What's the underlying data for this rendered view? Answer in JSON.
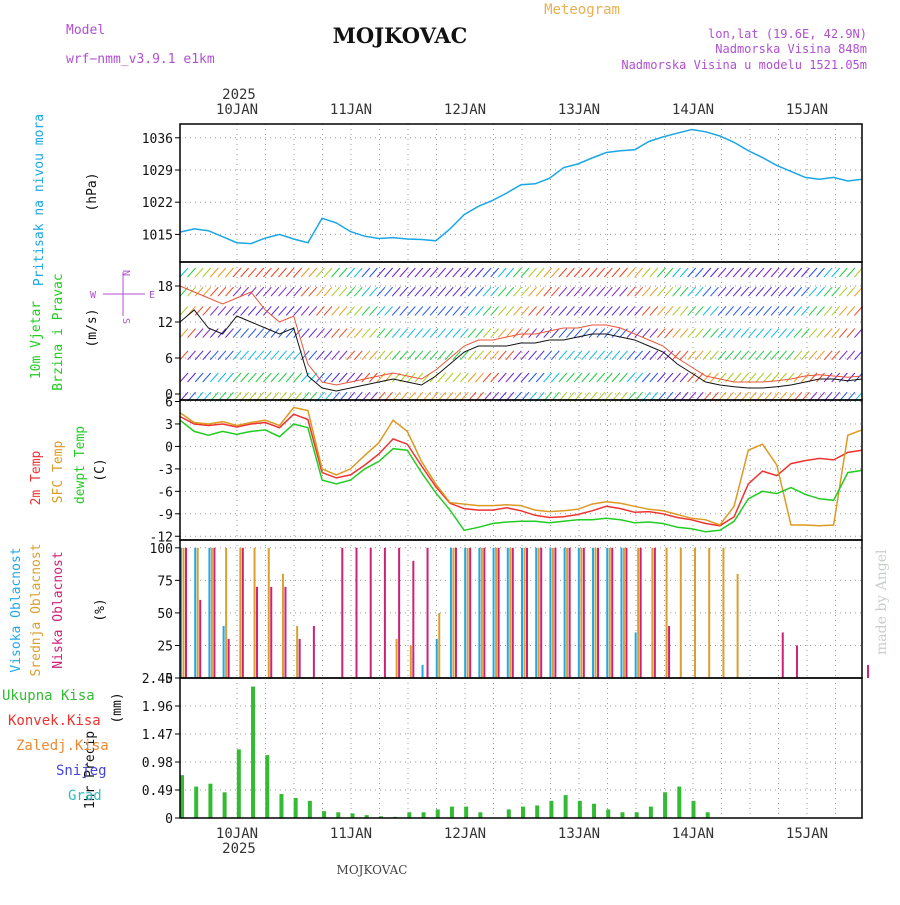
{
  "header": {
    "model_label": "Model",
    "model_name": "wrf−nmm_v3.9.1  e1km",
    "title": "MOJKOVAC",
    "subtitle": "Meteogram",
    "coords": "lon,lat (19.6E, 42.9N)",
    "elevation": "Nadmorska Visina 848m",
    "model_elevation": "Nadmorska Visina u modelu 1521.05m",
    "year_top": "2025",
    "year_bottom": "2025",
    "footer": "MOJKOVAC",
    "credit": "made by Angel"
  },
  "colors": {
    "pressure": "#1aa7e6",
    "temp2m": "#ee3333",
    "sfc": "#dd9a22",
    "dew": "#22cc22",
    "high_cloud": "#22a8e8",
    "mid_cloud": "#d9a030",
    "low_cloud": "#cc2277",
    "precip": "#33bb33",
    "title_purple": "#b050d0",
    "subtitle_orange": "#e8b050"
  },
  "days": [
    "10JAN",
    "11JAN",
    "12JAN",
    "13JAN",
    "14JAN",
    "15JAN"
  ],
  "compass": {
    "n": "N",
    "s": "S",
    "w": "W",
    "e": "E"
  },
  "chart_data": [
    {
      "type": "line",
      "panel": "pressure",
      "ylabel_rot": "Pritisak na nivou mora",
      "unit": "(hPa)",
      "yticks": [
        1015,
        1022,
        1029,
        1036
      ],
      "ylim": [
        1009,
        1039
      ],
      "x": [
        0,
        3,
        6,
        9,
        12,
        15,
        18,
        21,
        24,
        27,
        30,
        33,
        36,
        39,
        42,
        45,
        48,
        51,
        54,
        57,
        60,
        63,
        66,
        69,
        72,
        75,
        78,
        81,
        84,
        87,
        90,
        93,
        96,
        99,
        102,
        105,
        108,
        111,
        114,
        117,
        120,
        123,
        126,
        129,
        132,
        135,
        138,
        141,
        144
      ],
      "series": [
        {
          "values": [
            1015.5,
            1016.2,
            1015.8,
            1014.5,
            1013.2,
            1013.0,
            1014.2,
            1015.0,
            1014.0,
            1013.2,
            1018.5,
            1017.5,
            1015.6,
            1014.6,
            1014.1,
            1014.3,
            1014.0,
            1013.9,
            1013.6,
            1016.2,
            1019.3,
            1021.1,
            1022.4,
            1024.0,
            1025.8,
            1026.0,
            1027.2,
            1029.5,
            1030.3,
            1031.6,
            1032.8,
            1033.2,
            1033.4,
            1035.2,
            1036.2,
            1037.0,
            1037.8,
            1037.3,
            1036.4,
            1035.0,
            1033.2,
            1031.7,
            1030.0,
            1028.7,
            1027.4,
            1027.0,
            1027.4,
            1026.6,
            1027.0
          ]
        }
      ]
    },
    {
      "type": "line",
      "panel": "wind",
      "ylabel_rot1": "10m Vjetar",
      "ylabel_rot2": "Brzina i Pravac",
      "unit": "(m/s)",
      "yticks": [
        0,
        6,
        12,
        18
      ],
      "ylim": [
        -1,
        22
      ],
      "x": [
        0,
        3,
        6,
        9,
        12,
        15,
        18,
        21,
        24,
        27,
        30,
        33,
        36,
        39,
        42,
        45,
        48,
        51,
        54,
        57,
        60,
        63,
        66,
        69,
        72,
        75,
        78,
        81,
        84,
        87,
        90,
        93,
        96,
        99,
        102,
        105,
        108,
        111,
        114,
        117,
        120,
        123,
        126,
        129,
        132,
        135,
        138,
        141,
        144
      ],
      "series": [
        {
          "name": "speed",
          "values": [
            12,
            14,
            11,
            10,
            13,
            12,
            11,
            10,
            11,
            3,
            1,
            0.5,
            1,
            1.5,
            2,
            2.5,
            2,
            1.5,
            3,
            5,
            7,
            8,
            8,
            8,
            8.5,
            8.5,
            9,
            9,
            9.5,
            10,
            10,
            9.5,
            9,
            8,
            7,
            5,
            3.5,
            2,
            1.5,
            1.2,
            1,
            1,
            1.2,
            1.5,
            2,
            2.5,
            2.5,
            2.2,
            2.5
          ]
        },
        {
          "name": "gust",
          "values": [
            18,
            17,
            16,
            15,
            16,
            17,
            14,
            12,
            13,
            5,
            2,
            1.5,
            2,
            2.5,
            3,
            3.5,
            3,
            2.5,
            4,
            6,
            8,
            9,
            9,
            9.5,
            10,
            10,
            10.5,
            11,
            11,
            11.5,
            11.5,
            11,
            10,
            9,
            8,
            6,
            4.5,
            3,
            2.5,
            2,
            2,
            2,
            2.2,
            2.5,
            3,
            3.2,
            3,
            2.8,
            3
          ]
        }
      ]
    },
    {
      "type": "line",
      "panel": "temperature",
      "ylabel_rot1": "2m Temp",
      "ylabel_rot2": "SFC Temp",
      "ylabel_rot3": "dewpt Temp",
      "unit": "(C)",
      "yticks": [
        -12,
        -9,
        -6,
        -3,
        0,
        3,
        6
      ],
      "ylim": [
        -12.5,
        6.2
      ],
      "x": [
        0,
        3,
        6,
        9,
        12,
        15,
        18,
        21,
        24,
        27,
        30,
        33,
        36,
        39,
        42,
        45,
        48,
        51,
        54,
        57,
        60,
        63,
        66,
        69,
        72,
        75,
        78,
        81,
        84,
        87,
        90,
        93,
        96,
        99,
        102,
        105,
        108,
        111,
        114,
        117,
        120,
        123,
        126,
        129,
        132,
        135,
        138,
        141,
        144
      ],
      "series": [
        {
          "name": "2m",
          "values": [
            4,
            3,
            2.8,
            3,
            2.6,
            3,
            3.2,
            2.5,
            4.3,
            3.6,
            -3.5,
            -4.2,
            -3.8,
            -2.5,
            -1.0,
            1.0,
            0.3,
            -2.6,
            -5.4,
            -7.6,
            -8.3,
            -8.5,
            -8.5,
            -8.2,
            -8.6,
            -9.2,
            -9.5,
            -9.4,
            -9.1,
            -8.6,
            -8.0,
            -8.3,
            -8.8,
            -8.7,
            -9.0,
            -9.5,
            -9.8,
            -10.3,
            -10.6,
            -9.4,
            -5.0,
            -3.3,
            -3.9,
            -2.3,
            -1.9,
            -1.6,
            -1.8,
            -0.8,
            -0.5
          ]
        },
        {
          "name": "sfc",
          "values": [
            4.5,
            3.2,
            3,
            3.3,
            2.8,
            3.2,
            3.5,
            2.8,
            5.2,
            4.8,
            -3.0,
            -3.8,
            -3.0,
            -1.2,
            0.5,
            3.5,
            2.0,
            -2.0,
            -5.0,
            -7.5,
            -7.7,
            -7.9,
            -7.9,
            -7.8,
            -7.9,
            -8.5,
            -8.7,
            -8.6,
            -8.4,
            -7.7,
            -7.4,
            -7.6,
            -8.0,
            -8.4,
            -8.6,
            -9.1,
            -9.6,
            -9.8,
            -10.5,
            -8.0,
            -0.5,
            0.3,
            -2.5,
            -10.5,
            -10.5,
            -10.6,
            -10.5,
            1.5,
            2.2
          ]
        },
        {
          "name": "dewpt",
          "values": [
            3.5,
            2.0,
            1.5,
            2.0,
            1.6,
            2.0,
            2.2,
            1.3,
            3.0,
            2.5,
            -4.5,
            -5.0,
            -4.5,
            -3.0,
            -2.0,
            -0.3,
            -0.5,
            -3.5,
            -6.2,
            -8.5,
            -11.2,
            -10.8,
            -10.3,
            -10.1,
            -10.0,
            -10.0,
            -10.2,
            -10.0,
            -9.8,
            -9.8,
            -9.6,
            -9.8,
            -10.2,
            -10.1,
            -10.3,
            -10.8,
            -11.0,
            -11.4,
            -11.2,
            -10.0,
            -7.0,
            -6.0,
            -6.3,
            -5.5,
            -6.4,
            -7.0,
            -7.2,
            -3.5,
            -3.2
          ]
        }
      ]
    },
    {
      "type": "bar",
      "panel": "clouds",
      "ylabel_rot1": "Visoka Oblacnost",
      "ylabel_rot2": "Srednja Oblacnost",
      "ylabel_rot3": "Niska Oblacnost",
      "unit": "(%)",
      "yticks": [
        0,
        25,
        50,
        75,
        100
      ],
      "ylim": [
        0,
        106
      ],
      "x": [
        0,
        3,
        6,
        9,
        12,
        15,
        18,
        21,
        24,
        27,
        30,
        33,
        36,
        39,
        42,
        45,
        48,
        51,
        54,
        57,
        60,
        63,
        66,
        69,
        72,
        75,
        78,
        81,
        84,
        87,
        90,
        93,
        96,
        99,
        102,
        105,
        108,
        111,
        114,
        117,
        120,
        123,
        126,
        129,
        132,
        135,
        138,
        141,
        144
      ],
      "series": [
        {
          "name": "high",
          "values": [
            100,
            100,
            100,
            40,
            0,
            0,
            0,
            0,
            0,
            0,
            0,
            0,
            0,
            0,
            0,
            0,
            0,
            10,
            30,
            100,
            100,
            100,
            100,
            100,
            100,
            100,
            100,
            100,
            100,
            100,
            100,
            100,
            35,
            0,
            0,
            0,
            0,
            0,
            0,
            0,
            0,
            0,
            0,
            0,
            0,
            0,
            0,
            0,
            0
          ]
        },
        {
          "name": "mid",
          "values": [
            100,
            100,
            100,
            100,
            100,
            100,
            100,
            80,
            40,
            0,
            0,
            0,
            0,
            0,
            0,
            30,
            25,
            0,
            50,
            100,
            100,
            100,
            100,
            100,
            100,
            100,
            100,
            100,
            100,
            100,
            100,
            100,
            100,
            100,
            100,
            100,
            100,
            100,
            100,
            80,
            0,
            0,
            0,
            0,
            0,
            0,
            0,
            0,
            0
          ]
        },
        {
          "name": "low",
          "values": [
            100,
            60,
            100,
            30,
            100,
            70,
            70,
            70,
            30,
            40,
            0,
            100,
            100,
            100,
            100,
            100,
            90,
            100,
            0,
            100,
            100,
            100,
            100,
            100,
            100,
            100,
            100,
            100,
            100,
            100,
            100,
            100,
            100,
            100,
            40,
            0,
            0,
            0,
            0,
            0,
            0,
            0,
            35,
            25,
            0,
            0,
            0,
            0,
            10
          ]
        }
      ]
    },
    {
      "type": "bar",
      "panel": "precipitation",
      "legend": [
        "Ukupna  Kisa",
        "Konvek.Kisa",
        "Zaledj.Kisa",
        "Snijeg",
        "Grad"
      ],
      "ylabel_rot1": "1hr Precip",
      "unit": "(mm)",
      "yticks": [
        0,
        0.49,
        0.98,
        1.47,
        1.96,
        2.45
      ],
      "ylim": [
        0,
        2.45
      ],
      "x": [
        0,
        3,
        6,
        9,
        12,
        15,
        18,
        21,
        24,
        27,
        30,
        33,
        36,
        39,
        42,
        45,
        48,
        51,
        54,
        57,
        60,
        63,
        66,
        69,
        72,
        75,
        78,
        81,
        84,
        87,
        90,
        93,
        96,
        99,
        102,
        105,
        108,
        111,
        114,
        117,
        120,
        123,
        126,
        129,
        132,
        135,
        138,
        141,
        144
      ],
      "series": [
        {
          "name": "total",
          "values": [
            0.75,
            0.55,
            0.6,
            0.45,
            1.2,
            2.3,
            1.1,
            0.42,
            0.35,
            0.3,
            0.12,
            0.1,
            0.08,
            0.05,
            0.03,
            0.02,
            0.1,
            0.1,
            0.15,
            0.2,
            0.2,
            0.1,
            0.0,
            0.15,
            0.2,
            0.22,
            0.3,
            0.4,
            0.3,
            0.25,
            0.15,
            0.1,
            0.1,
            0.2,
            0.45,
            0.55,
            0.3,
            0.1,
            0.0,
            0.0,
            0.0,
            0.0,
            0.0,
            0.0,
            0.0,
            0.0,
            0.0,
            0.0,
            0.0
          ]
        }
      ]
    }
  ]
}
